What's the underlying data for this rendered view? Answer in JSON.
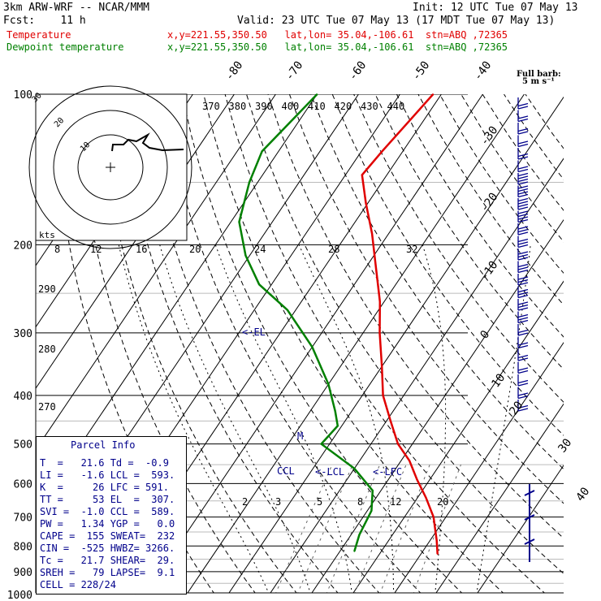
{
  "header": {
    "model": "3km ARW-WRF -- NCAR/MMM",
    "init": "Init: 12 UTC Tue 07 May 13",
    "fcst": "Fcst:    11 h",
    "valid": "Valid: 23 UTC Tue 07 May 13 (17 MDT Tue 07 May 13)",
    "temp_label": "Temperature",
    "temp_loc": "x,y=221.55,350.50   lat,lon= 35.04,-106.61  stn=ABQ ,72365",
    "dew_label": "Dewpoint temperature",
    "dew_loc": "x,y=221.55,350.50   lat,lon= 35.04,-106.61  stn=ABQ ,72365"
  },
  "colors": {
    "temperature": "#e00000",
    "dewpoint": "#008000",
    "info": "#00008b",
    "grid": "#000000",
    "gray": "#888888"
  },
  "pressure_labels": [
    "100",
    "200",
    "300",
    "400",
    "500",
    "600",
    "700",
    "800",
    "900",
    "1000"
  ],
  "isotherm_labels": [
    "-80",
    "-70",
    "-60",
    "-50",
    "-40",
    "-30",
    "-20",
    "-10",
    "0",
    "10",
    "20",
    "30",
    "40"
  ],
  "theta_labels": [
    "370",
    "380",
    "390",
    "400",
    "410",
    "420",
    "430",
    "440"
  ],
  "mixing_top_labels": [
    "8",
    "12",
    "16",
    "20",
    "24",
    "28",
    "32"
  ],
  "mixing_bottom_labels": [
    "2",
    "3",
    "5",
    "8",
    "12",
    "20"
  ],
  "hodograph": {
    "units": "kts",
    "ring_labels": [
      "30",
      "20",
      "10"
    ]
  },
  "left_theta_labels": [
    "290",
    "280",
    "270"
  ],
  "wind_barb_title": "Full barb:",
  "wind_barb_units": "5 m s⁻¹",
  "levels": {
    "el": "<-EL",
    "m": "M",
    "ccl": "CCL",
    "lcl": "<-LCL",
    "lfc": "<-LFC"
  },
  "parcel_info": {
    "title": "Parcel Info",
    "rows": [
      "T  =   21.6 Td =  -0.9",
      "LI =   -1.6 LCL =  593.",
      "K  =     26 LFC = 591.",
      "TT =     53 EL  =  307.",
      "SVI =  -1.0 CCL =  589.",
      "PW =   1.34 YGP =   0.0",
      "CAPE =  155 SWEAT=  232",
      "CIN =  -525 HWBZ= 3266.",
      "Tc =   21.7 SHEAR=  29.",
      "SREH =   79 LAPSE=  9.1",
      "CELL = 228/24"
    ]
  },
  "chart_data": {
    "type": "line",
    "title": "3km ARW-WRF -- NCAR/MMM",
    "xlabel": "",
    "ylabel": "",
    "y_scale": "log pressure (hPa)",
    "y_range": [
      1000,
      100
    ],
    "grid": true,
    "series": [
      {
        "name": "Temperature",
        "x": [
          24.0,
          21.6,
          17.0,
          12.0,
          7.0,
          2.0,
          -3.5,
          -9.0,
          -15.0,
          -20.0,
          -26.0,
          -31.0,
          -37.0,
          -44.0,
          -50.5,
          -56.0,
          -55.0,
          -52.0
        ],
        "y": [
          830,
          780,
          700,
          640,
          590,
          540,
          500,
          450,
          400,
          350,
          300,
          260,
          225,
          190,
          165,
          145,
          130,
          100
        ]
      },
      {
        "name": "Dewpoint temperature",
        "x": [
          3.5,
          2.0,
          1.0,
          -2.0,
          -10.0,
          -22.0,
          -21.0,
          -24.0,
          -30.0,
          -40.0,
          -52.0,
          -63.0,
          -71.0,
          -78.0,
          -82.0,
          -84.0,
          -80.0
        ],
        "y": [
          820,
          760,
          680,
          620,
          560,
          500,
          460,
          430,
          380,
          320,
          270,
          240,
          210,
          180,
          150,
          130,
          100
        ]
      }
    ]
  }
}
